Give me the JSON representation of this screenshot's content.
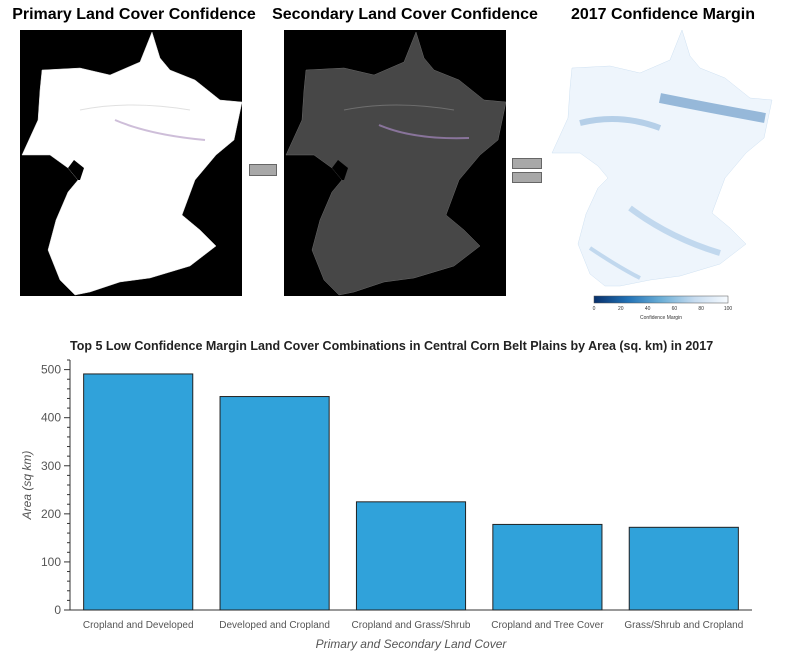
{
  "panels": {
    "primary_title": "Primary Land Cover Confidence",
    "secondary_title": "Secondary Land Cover Confidence",
    "margin_title": "2017 Confidence Margin",
    "operator_minus": "minus-operator-icon",
    "operator_equals": "equals-operator-icon",
    "colorbar": {
      "label": "Confidence Margin",
      "ticks": [
        "0",
        "20",
        "40",
        "60",
        "80",
        "100"
      ],
      "colors": [
        "#08306b",
        "#2171b5",
        "#6baed6",
        "#c6dbef",
        "#f7fbff"
      ]
    }
  },
  "chart_data": {
    "type": "bar",
    "title": "Top 5 Low Confidence Margin Land Cover Combinations in Central Corn Belt Plains by Area (sq. km) in 2017",
    "xlabel": "Primary and Secondary Land Cover",
    "ylabel": "Area (sq km)",
    "categories": [
      "Cropland and Developed",
      "Developed and Cropland",
      "Cropland and Grass/Shrub",
      "Cropland and Tree Cover",
      "Grass/Shrub and Cropland"
    ],
    "values": [
      491,
      444,
      225,
      178,
      172
    ],
    "ylim": [
      0,
      520
    ],
    "yticks": [
      0,
      100,
      200,
      300,
      400,
      500
    ],
    "bar_color": "#30a2da",
    "grid": false
  }
}
